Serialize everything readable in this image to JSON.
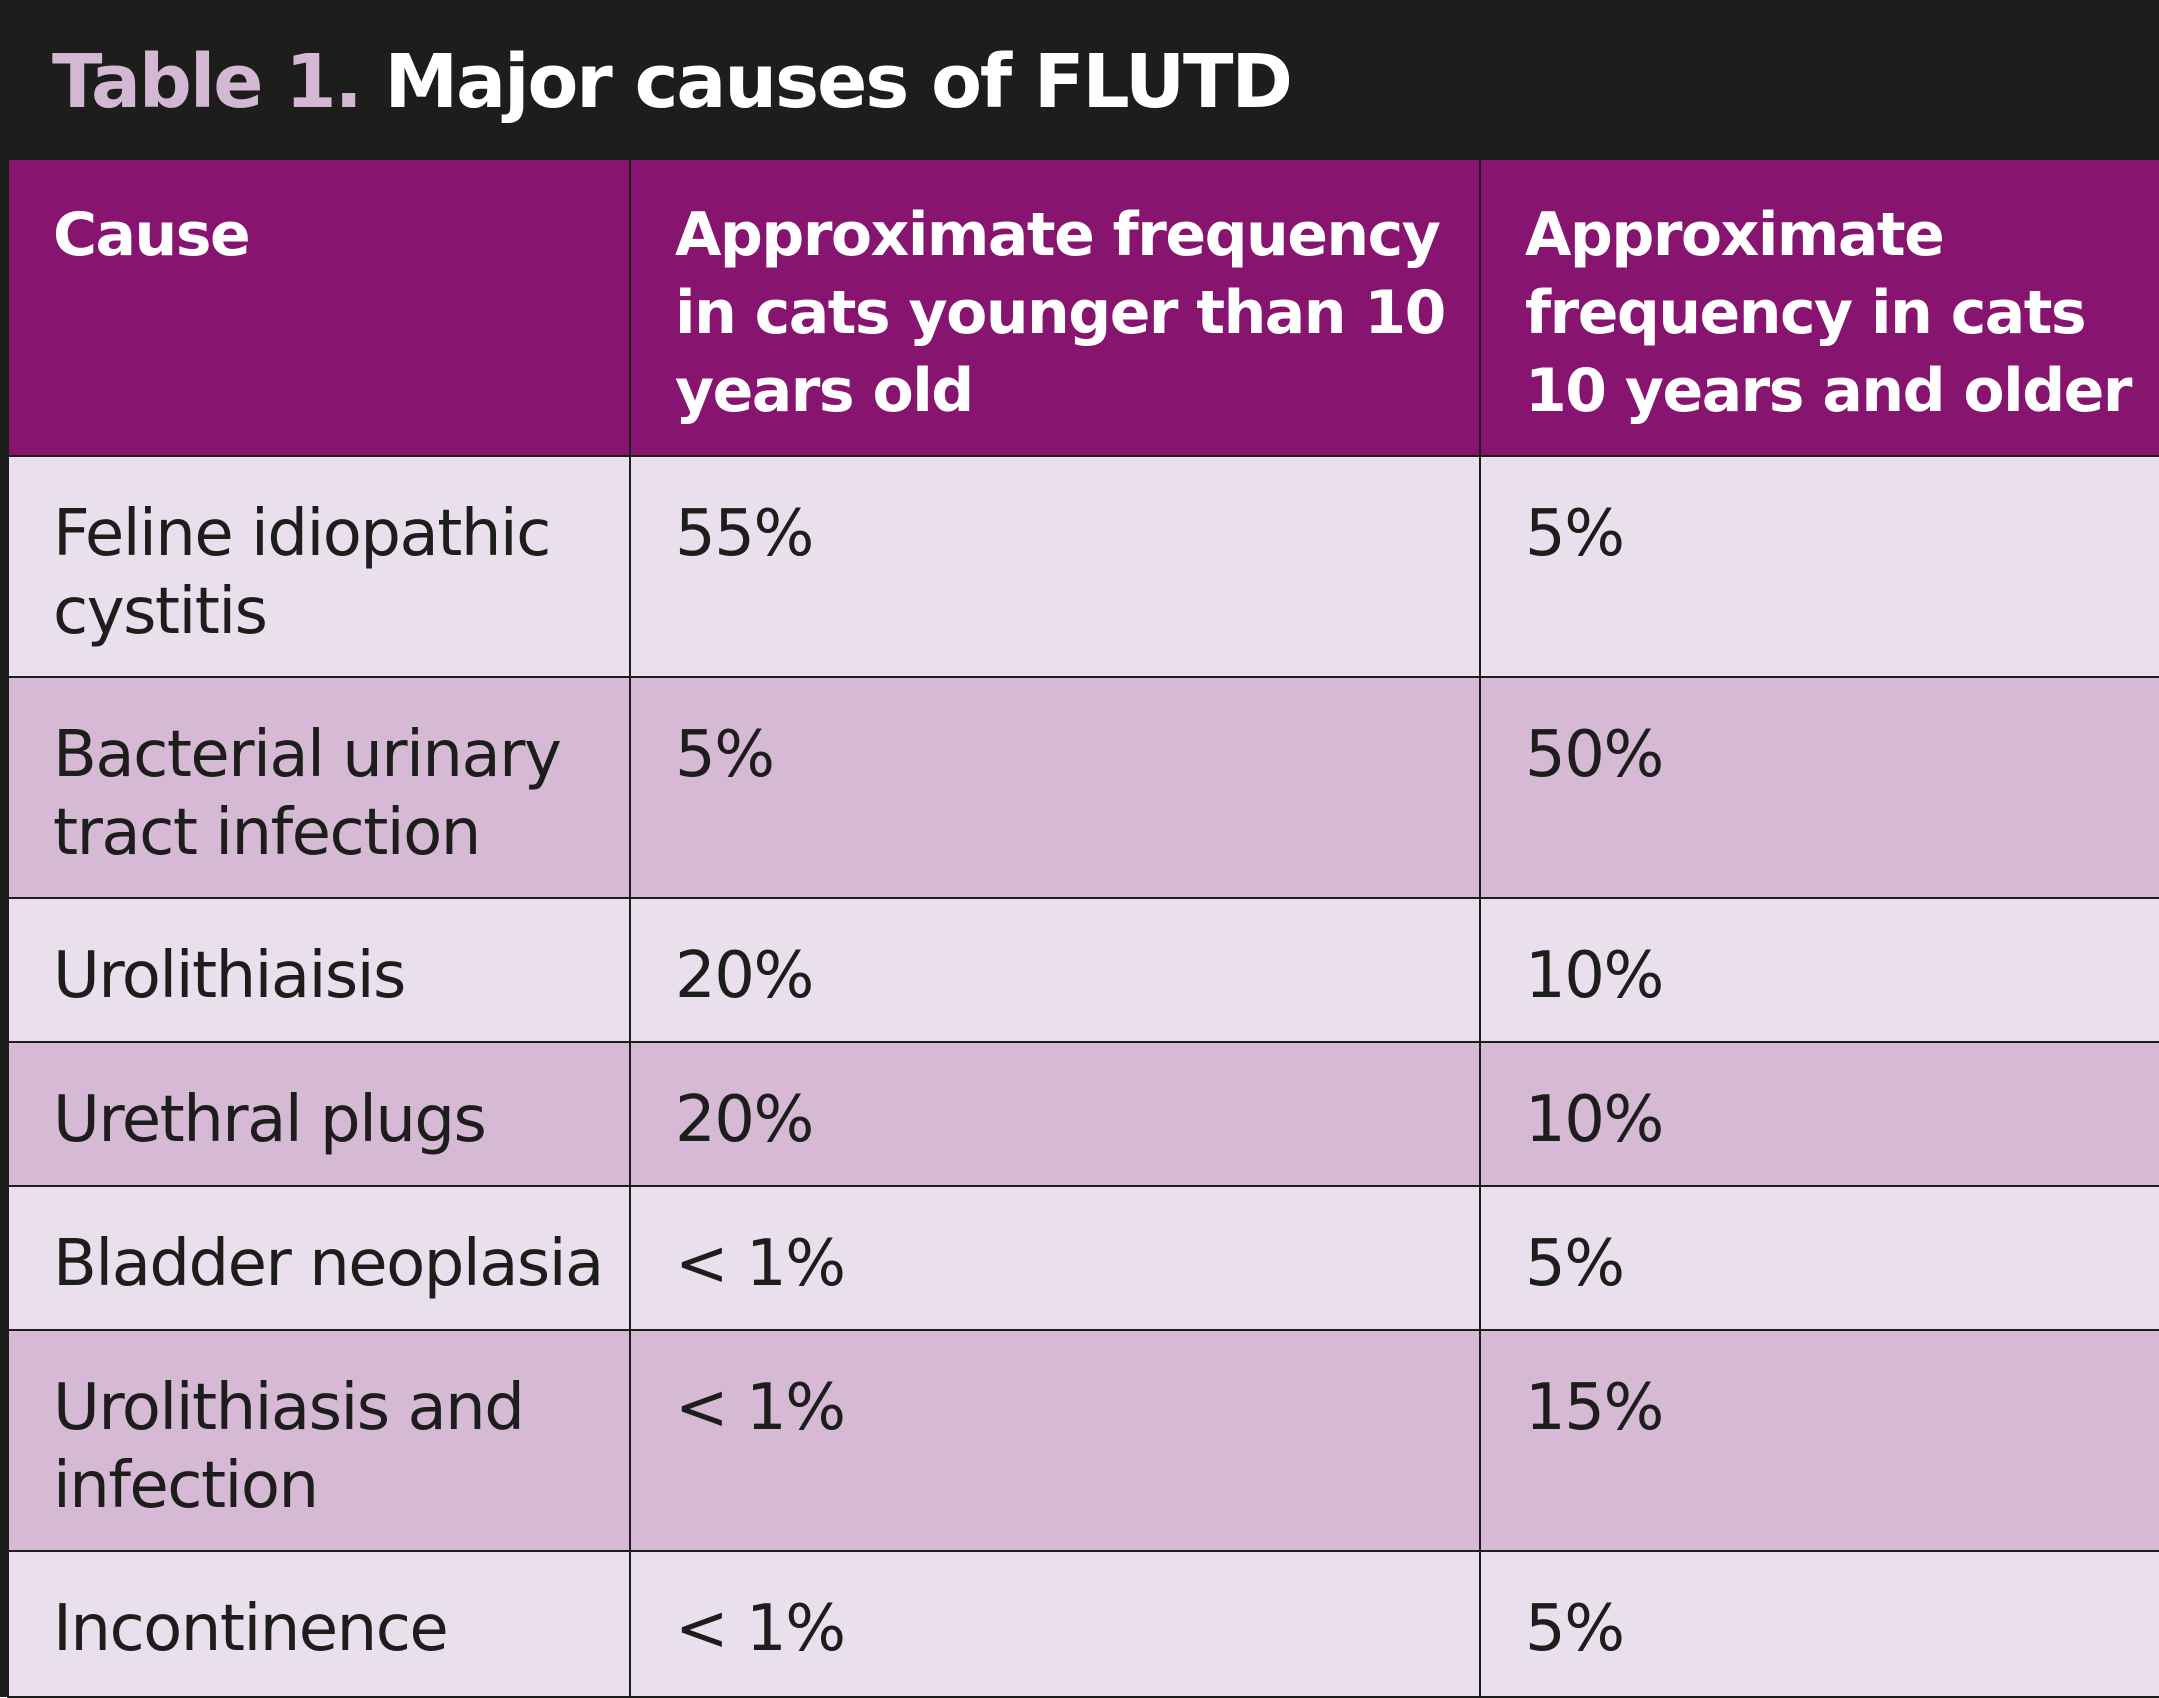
{
  "title": {
    "prefix": "Table 1.",
    "text": "Major causes of FLUTD"
  },
  "columns": [
    "Cause",
    "Approximate frequency in cats younger than 10 years old",
    "Approximate frequency in cats 10 years and older"
  ],
  "rows": [
    {
      "cause": "Feline idiopathic cystitis",
      "under10": "55%",
      "over10": "5%"
    },
    {
      "cause": "Bacterial urinary tract infection",
      "under10": "5%",
      "over10": "50%"
    },
    {
      "cause": "Urolithiaisis",
      "under10": "20%",
      "over10": "10%"
    },
    {
      "cause": "Urethral plugs",
      "under10": "20%",
      "over10": "10%"
    },
    {
      "cause": "Bladder neoplasia",
      "under10": "< 1%",
      "over10": "5%"
    },
    {
      "cause": "Urolithiasis and infection",
      "under10": "< 1%",
      "over10": "15%"
    },
    {
      "cause": "Incontinence",
      "under10": "< 1%",
      "over10": "5%"
    }
  ],
  "colors": {
    "title_bar": "#1d1d1b",
    "title_prefix": "#d3b8d4",
    "header": "#871570",
    "row_light": "#eadfec",
    "row_dark": "#d5b9d5"
  }
}
